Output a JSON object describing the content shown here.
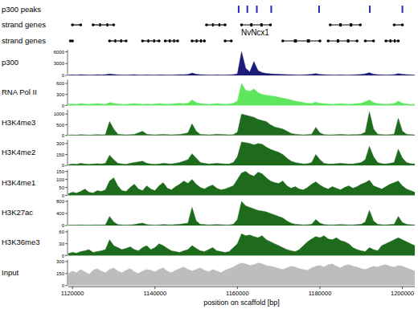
{
  "chart_data": {
    "type": "area",
    "x_label": "position on scaffold [bp]",
    "xlim": [
      1119000,
      1203000
    ],
    "xticks": [
      1120000,
      1140000,
      1160000,
      1180000,
      1200000
    ],
    "peaks": {
      "label": "p300 peaks",
      "color": "#2a2ab0",
      "positions": [
        1160300,
        1162400,
        1164700,
        1168200,
        1179800,
        1192100,
        1200000
      ]
    },
    "gene_tracks": [
      {
        "label": "strand genes",
        "color": "#000000",
        "genes": [
          {
            "start": 1120000,
            "end": 1122000
          },
          {
            "start": 1125000,
            "end": 1130000
          },
          {
            "start": 1152500,
            "end": 1157000
          },
          {
            "start": 1161000,
            "end": 1168000
          },
          {
            "start": 1182500,
            "end": 1189800
          },
          {
            "start": 1198000,
            "end": 1200000
          }
        ]
      },
      {
        "label": "strand genes",
        "color": "#000000",
        "genes": [
          {
            "start": 1119500,
            "end": 1120000
          },
          {
            "start": 1129000,
            "end": 1133000
          },
          {
            "start": 1137000,
            "end": 1141000
          },
          {
            "start": 1142500,
            "end": 1145500
          },
          {
            "start": 1149000,
            "end": 1152000
          },
          {
            "start": 1157000,
            "end": 1158500
          },
          {
            "start": 1171000,
            "end": 1180000
          },
          {
            "start": 1182000,
            "end": 1189000
          },
          {
            "start": 1191000,
            "end": 1193000
          },
          {
            "start": 1196000,
            "end": 1199000
          }
        ]
      }
    ],
    "annotations": [
      {
        "text": "NvNcx1",
        "x": 1164300
      }
    ],
    "x": [
      1119000,
      1120000,
      1121000,
      1122000,
      1123000,
      1124000,
      1125000,
      1126000,
      1127000,
      1128000,
      1129000,
      1130000,
      1131000,
      1132000,
      1133000,
      1134000,
      1135000,
      1136000,
      1137000,
      1138000,
      1139000,
      1140000,
      1141000,
      1142000,
      1143000,
      1144000,
      1145000,
      1146000,
      1147000,
      1148000,
      1149000,
      1150000,
      1151000,
      1152000,
      1153000,
      1154000,
      1155000,
      1156000,
      1157000,
      1158000,
      1159000,
      1160000,
      1161000,
      1162000,
      1163000,
      1164000,
      1165000,
      1166000,
      1167000,
      1168000,
      1169000,
      1170000,
      1171000,
      1172000,
      1173000,
      1174000,
      1175000,
      1176000,
      1177000,
      1178000,
      1179000,
      1180000,
      1181000,
      1182000,
      1183000,
      1184000,
      1185000,
      1186000,
      1187000,
      1188000,
      1189000,
      1190000,
      1191000,
      1192000,
      1193000,
      1194000,
      1195000,
      1196000,
      1197000,
      1198000,
      1199000,
      1200000,
      1201000,
      1202000,
      1203000
    ],
    "series": [
      {
        "name": "p300",
        "color": "#1b1b7a",
        "ylim": [
          0,
          6500
        ],
        "yticks": [
          0,
          3000,
          6000
        ],
        "values": [
          100,
          150,
          120,
          200,
          150,
          100,
          120,
          180,
          150,
          200,
          350,
          250,
          150,
          120,
          100,
          150,
          200,
          120,
          100,
          150,
          120,
          100,
          150,
          130,
          100,
          120,
          150,
          200,
          180,
          250,
          600,
          300,
          200,
          150,
          120,
          100,
          150,
          120,
          100,
          150,
          200,
          400,
          6000,
          1800,
          900,
          3500,
          1200,
          700,
          500,
          400,
          350,
          300,
          250,
          200,
          180,
          150,
          120,
          150,
          200,
          300,
          450,
          250,
          200,
          150,
          120,
          100,
          150,
          120,
          100,
          150,
          200,
          250,
          400,
          700,
          300,
          200,
          150,
          120,
          150,
          200,
          450,
          300,
          200,
          150,
          100
        ]
      },
      {
        "name": "RNA Pol II",
        "color": "#5ee65e",
        "ylim": [
          0,
          700
        ],
        "yticks": [
          0,
          300,
          600
        ],
        "values": [
          30,
          40,
          30,
          50,
          40,
          30,
          40,
          50,
          40,
          30,
          80,
          60,
          40,
          30,
          30,
          40,
          50,
          40,
          30,
          40,
          30,
          40,
          50,
          40,
          30,
          40,
          50,
          60,
          50,
          60,
          150,
          80,
          50,
          40,
          30,
          40,
          50,
          40,
          30,
          40,
          60,
          120,
          600,
          420,
          380,
          450,
          350,
          300,
          280,
          260,
          250,
          220,
          200,
          180,
          150,
          120,
          100,
          80,
          60,
          50,
          90,
          60,
          50,
          40,
          30,
          40,
          50,
          40,
          30,
          40,
          50,
          60,
          100,
          150,
          80,
          50,
          40,
          30,
          40,
          50,
          120,
          60,
          40,
          30,
          30
        ]
      },
      {
        "name": "H3K4me3",
        "color": "#1e6b1e",
        "ylim": [
          0,
          1200
        ],
        "yticks": [
          0,
          500,
          1000
        ],
        "values": [
          20,
          30,
          20,
          40,
          30,
          20,
          30,
          40,
          30,
          40,
          650,
          300,
          60,
          40,
          30,
          40,
          50,
          120,
          200,
          60,
          40,
          30,
          40,
          50,
          40,
          30,
          40,
          50,
          80,
          120,
          550,
          200,
          50,
          40,
          30,
          40,
          60,
          50,
          40,
          30,
          40,
          150,
          1000,
          950,
          900,
          850,
          750,
          700,
          650,
          500,
          400,
          350,
          300,
          200,
          100,
          60,
          40,
          30,
          40,
          60,
          380,
          120,
          40,
          30,
          30,
          40,
          50,
          40,
          30,
          40,
          40,
          60,
          150,
          1100,
          300,
          60,
          40,
          30,
          40,
          60,
          800,
          200,
          60,
          40,
          30
        ]
      },
      {
        "name": "H3K4me2",
        "color": "#1e6b1e",
        "ylim": [
          0,
          350
        ],
        "yticks": [
          0,
          150,
          300
        ],
        "values": [
          10,
          20,
          15,
          30,
          20,
          15,
          20,
          25,
          20,
          30,
          140,
          80,
          30,
          20,
          15,
          30,
          40,
          50,
          60,
          30,
          20,
          15,
          20,
          30,
          25,
          20,
          30,
          40,
          60,
          80,
          160,
          100,
          40,
          30,
          20,
          25,
          30,
          25,
          20,
          20,
          40,
          120,
          320,
          310,
          300,
          280,
          300,
          290,
          250,
          220,
          200,
          180,
          150,
          100,
          60,
          40,
          30,
          20,
          25,
          40,
          150,
          80,
          30,
          20,
          20,
          25,
          30,
          25,
          20,
          20,
          30,
          40,
          80,
          260,
          120,
          40,
          25,
          20,
          30,
          40,
          220,
          100,
          40,
          25,
          20
        ]
      },
      {
        "name": "H3K4me1",
        "color": "#1e6b1e",
        "ylim": [
          0,
          160
        ],
        "yticks": [
          0,
          50,
          100,
          150
        ],
        "values": [
          10,
          20,
          15,
          25,
          40,
          20,
          15,
          30,
          25,
          35,
          90,
          110,
          60,
          30,
          25,
          50,
          70,
          40,
          30,
          60,
          40,
          30,
          60,
          80,
          45,
          35,
          55,
          70,
          90,
          75,
          100,
          70,
          50,
          40,
          55,
          65,
          45,
          35,
          40,
          50,
          60,
          100,
          140,
          150,
          130,
          120,
          145,
          135,
          110,
          90,
          80,
          75,
          90,
          60,
          45,
          55,
          40,
          35,
          50,
          70,
          85,
          65,
          50,
          40,
          55,
          45,
          35,
          50,
          60,
          45,
          55,
          70,
          80,
          95,
          60,
          50,
          40,
          55,
          70,
          80,
          90,
          60,
          40,
          30,
          20
        ]
      },
      {
        "name": "H3K27ac",
        "color": "#1e6b1e",
        "ylim": [
          0,
          850
        ],
        "yticks": [
          0,
          400,
          800
        ],
        "values": [
          10,
          15,
          10,
          20,
          15,
          10,
          15,
          20,
          15,
          20,
          300,
          120,
          30,
          20,
          15,
          20,
          30,
          60,
          80,
          30,
          20,
          15,
          20,
          30,
          25,
          20,
          30,
          40,
          60,
          80,
          600,
          150,
          40,
          30,
          20,
          25,
          30,
          25,
          20,
          20,
          40,
          200,
          800,
          650,
          600,
          550,
          500,
          480,
          450,
          400,
          350,
          300,
          250,
          150,
          80,
          40,
          30,
          20,
          25,
          40,
          200,
          80,
          30,
          20,
          20,
          25,
          30,
          25,
          20,
          20,
          30,
          40,
          120,
          500,
          150,
          40,
          25,
          20,
          30,
          40,
          300,
          100,
          40,
          25,
          20
        ]
      },
      {
        "name": "H3K36me3",
        "color": "#1e6b1e",
        "ylim": [
          0,
          65
        ],
        "yticks": [
          0,
          30,
          60
        ],
        "values": [
          5,
          8,
          6,
          10,
          12,
          15,
          8,
          10,
          12,
          15,
          40,
          25,
          20,
          15,
          18,
          22,
          15,
          12,
          20,
          25,
          15,
          20,
          30,
          25,
          18,
          12,
          10,
          8,
          12,
          15,
          25,
          18,
          12,
          10,
          15,
          20,
          12,
          10,
          8,
          10,
          20,
          30,
          55,
          50,
          52,
          48,
          45,
          50,
          40,
          35,
          30,
          25,
          20,
          15,
          12,
          10,
          15,
          25,
          35,
          42,
          48,
          45,
          50,
          42,
          40,
          45,
          38,
          35,
          30,
          20,
          15,
          12,
          10,
          20,
          15,
          12,
          25,
          30,
          35,
          40,
          45,
          40,
          35,
          30,
          25
        ]
      },
      {
        "name": "Input",
        "color": "#bdbdbd",
        "ylim": [
          0,
          320
        ],
        "yticks": [
          0,
          150,
          300
        ],
        "values": [
          150,
          180,
          160,
          200,
          170,
          140,
          190,
          210,
          180,
          160,
          200,
          220,
          180,
          160,
          190,
          210,
          170,
          150,
          180,
          200,
          190,
          170,
          200,
          220,
          180,
          160,
          190,
          210,
          230,
          200,
          180,
          200,
          220,
          190,
          170,
          200,
          180,
          160,
          190,
          210,
          230,
          260,
          280,
          270,
          250,
          260,
          280,
          270,
          250,
          240,
          230,
          210,
          200,
          220,
          240,
          230,
          210,
          200,
          190,
          220,
          240,
          250,
          230,
          260,
          270,
          240,
          220,
          250,
          260,
          240,
          230,
          210,
          200,
          220,
          240,
          230,
          250,
          260,
          240,
          230,
          250,
          240,
          220,
          200,
          180
        ]
      }
    ]
  }
}
